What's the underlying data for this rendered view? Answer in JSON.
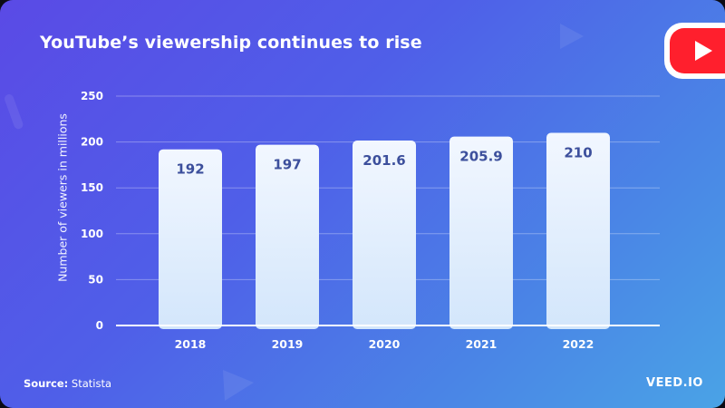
{
  "header": {
    "title": "YouTube’s viewership continues to rise"
  },
  "footer": {
    "source_label": "Source:",
    "source_value": "Statista",
    "brand": "VEED.IO"
  },
  "badge": {
    "icon": "youtube-play-icon",
    "color_red": "#ff1f2d"
  },
  "colors": {
    "bar_top": "#f2f7ff",
    "bar_bottom": "#d3e6fb",
    "label_text": "#3c4f9c"
  },
  "chart_data": {
    "type": "bar",
    "title": "YouTube’s viewership continues to rise",
    "xlabel": "",
    "ylabel": "Number of viewers in millions",
    "categories": [
      "2018",
      "2019",
      "2020",
      "2021",
      "2022"
    ],
    "values": [
      192,
      197,
      201.6,
      205.9,
      210
    ],
    "value_labels": [
      "192",
      "197",
      "201.6",
      "205.9",
      "210"
    ],
    "ylim": [
      0,
      250
    ],
    "yticks": [
      0,
      50,
      100,
      150,
      200,
      250
    ],
    "grid": true,
    "legend": "none"
  }
}
